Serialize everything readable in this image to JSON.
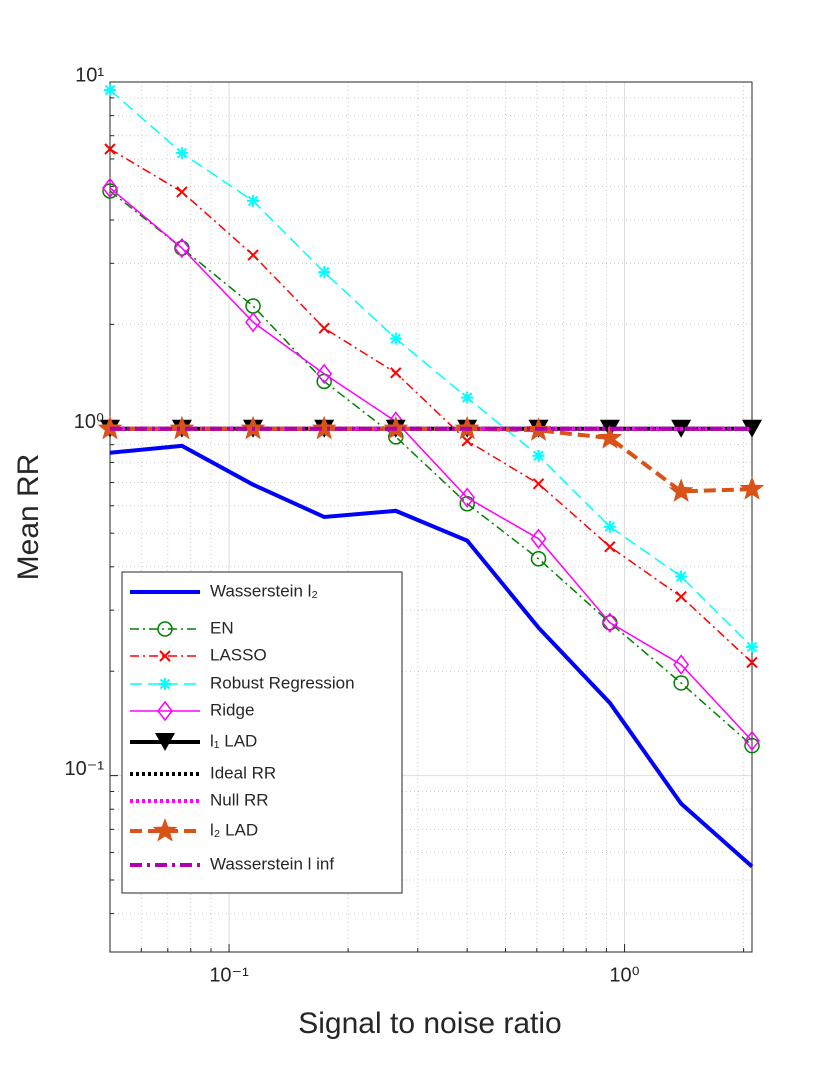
{
  "chart_data": {
    "type": "line",
    "xlabel": "Signal to noise ratio",
    "ylabel": "Mean RR",
    "xlog": true,
    "ylog": true,
    "grid": true,
    "x": [
      0.05,
      0.076,
      0.115,
      0.174,
      0.264,
      0.4,
      0.606,
      0.918,
      1.39,
      2.1
    ],
    "xlim": [
      0.05,
      2.1
    ],
    "ylim": [
      0.031,
      10
    ],
    "xticks": [
      {
        "value": 0.1,
        "label": "10⁻¹"
      },
      {
        "value": 1,
        "label": "10⁰"
      }
    ],
    "yticks": [
      {
        "value": 0.1,
        "label": "10⁻¹"
      },
      {
        "value": 1,
        "label": "10⁰"
      },
      {
        "value": 10,
        "label": "10¹"
      }
    ],
    "xminorticks": [
      0.05,
      0.06,
      0.07,
      0.08,
      0.09,
      0.2,
      0.3,
      0.4,
      0.5,
      0.6,
      0.7,
      0.8,
      0.9,
      2
    ],
    "yminorticks": [
      0.04,
      0.05,
      0.06,
      0.07,
      0.08,
      0.09,
      0.2,
      0.3,
      0.4,
      0.5,
      0.6,
      0.7,
      0.8,
      0.9,
      2,
      3,
      4,
      5,
      6,
      7,
      8,
      9
    ],
    "legend": "lower left",
    "series": [
      {
        "name": "Wasserstein l₂",
        "color": "#0000ff",
        "dash": "none",
        "width": 4,
        "marker": "none",
        "values": [
          0.853,
          0.893,
          0.69,
          0.557,
          0.58,
          0.476,
          0.267,
          0.162,
          0.083,
          0.0547
        ]
      },
      {
        "name": "EN",
        "color": "#008000",
        "dash": "9 4 2 4",
        "width": 1.5,
        "marker": "circle",
        "values": [
          4.85,
          3.32,
          2.26,
          1.37,
          0.948,
          0.608,
          0.422,
          0.276,
          0.185,
          0.122
        ]
      },
      {
        "name": "LASSO",
        "color": "#ff0000",
        "dash": "9 4 2 4",
        "width": 1.5,
        "marker": "x",
        "values": [
          6.41,
          4.82,
          3.17,
          1.95,
          1.45,
          0.923,
          0.694,
          0.457,
          0.328,
          0.212
        ]
      },
      {
        "name": "Robust Regression",
        "color": "#00ffff",
        "dash": "12 6",
        "width": 1.5,
        "marker": "asterisk",
        "values": [
          9.48,
          6.24,
          4.54,
          2.83,
          1.82,
          1.23,
          0.836,
          0.522,
          0.375,
          0.235
        ]
      },
      {
        "name": "Ridge",
        "color": "#ff00ff",
        "dash": "none",
        "width": 1.5,
        "marker": "diamond",
        "values": [
          4.95,
          3.32,
          2.03,
          1.44,
          1.05,
          0.633,
          0.482,
          0.276,
          0.209,
          0.126
        ]
      },
      {
        "name": "l₁ LAD",
        "color": "#000000",
        "dash": "none",
        "width": 4,
        "marker": "triangle",
        "values": [
          1,
          1,
          1,
          1,
          1,
          1,
          1,
          1,
          1,
          1
        ]
      },
      {
        "name": "Ideal RR",
        "color": "#000000",
        "dash": "3 3",
        "width": 4,
        "marker": "none",
        "values": [
          1,
          1,
          1,
          1,
          1,
          1,
          1,
          1,
          1,
          1
        ]
      },
      {
        "name": "Null RR",
        "color": "#ff00ff",
        "dash": "3 3",
        "width": 4,
        "marker": "none",
        "values": [
          1,
          1,
          1,
          1,
          1,
          1,
          1,
          1,
          1,
          1
        ]
      },
      {
        "name": "l₂ LAD",
        "color": "#d95319",
        "dash": "12 6",
        "width": 4,
        "marker": "star",
        "values": [
          1,
          1,
          1,
          1,
          1,
          1,
          0.99,
          0.94,
          0.66,
          0.67
        ]
      },
      {
        "name": "Wasserstein l inf",
        "color": "#b000b0",
        "dash": "12 5 3 5",
        "width": 4,
        "marker": "none",
        "values": [
          1,
          1,
          1,
          1,
          1,
          1,
          1,
          1,
          1,
          1
        ]
      }
    ]
  }
}
